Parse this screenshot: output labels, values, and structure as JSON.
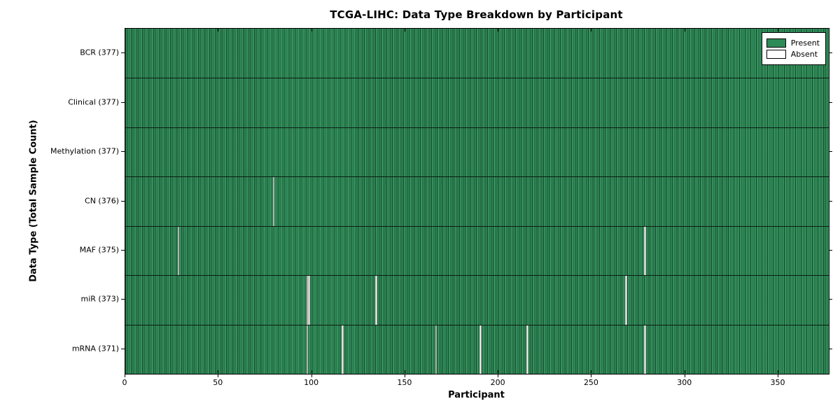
{
  "chart_data": {
    "type": "heatmap",
    "title": "TCGA-LIHC: Data Type Breakdown by Participant",
    "xlabel": "Participant",
    "ylabel": "Data Type (Total Sample Count)",
    "xlim": [
      0,
      377
    ],
    "x_ticks": [
      0,
      50,
      100,
      150,
      200,
      250,
      300,
      350
    ],
    "n_participants": 377,
    "grid": false,
    "legend": {
      "position": "upper right",
      "entries": [
        {
          "label": "Present",
          "color": "#2e8b57"
        },
        {
          "label": "Absent",
          "color": "#ffffff"
        }
      ]
    },
    "colors": {
      "present": "#2e8b57",
      "absent": "#ffffff",
      "bar_edge": "#000000"
    },
    "rows": [
      {
        "label": "BCR (377)",
        "data_type": "BCR",
        "total": 377,
        "absent_participants": []
      },
      {
        "label": "Clinical (377)",
        "data_type": "Clinical",
        "total": 377,
        "absent_participants": []
      },
      {
        "label": "Methylation (377)",
        "data_type": "Methylation",
        "total": 377,
        "absent_participants": []
      },
      {
        "label": "CN (376)",
        "data_type": "CN",
        "total": 376,
        "absent_participants": [
          79
        ]
      },
      {
        "label": "MAF (375)",
        "data_type": "MAF",
        "total": 375,
        "absent_participants": [
          28,
          278
        ]
      },
      {
        "label": "miR (373)",
        "data_type": "miR",
        "total": 373,
        "absent_participants": [
          97,
          98,
          134,
          268
        ]
      },
      {
        "label": "mRNA (371)",
        "data_type": "mRNA",
        "total": 371,
        "absent_participants": [
          97,
          116,
          166,
          190,
          215,
          278
        ]
      }
    ]
  }
}
